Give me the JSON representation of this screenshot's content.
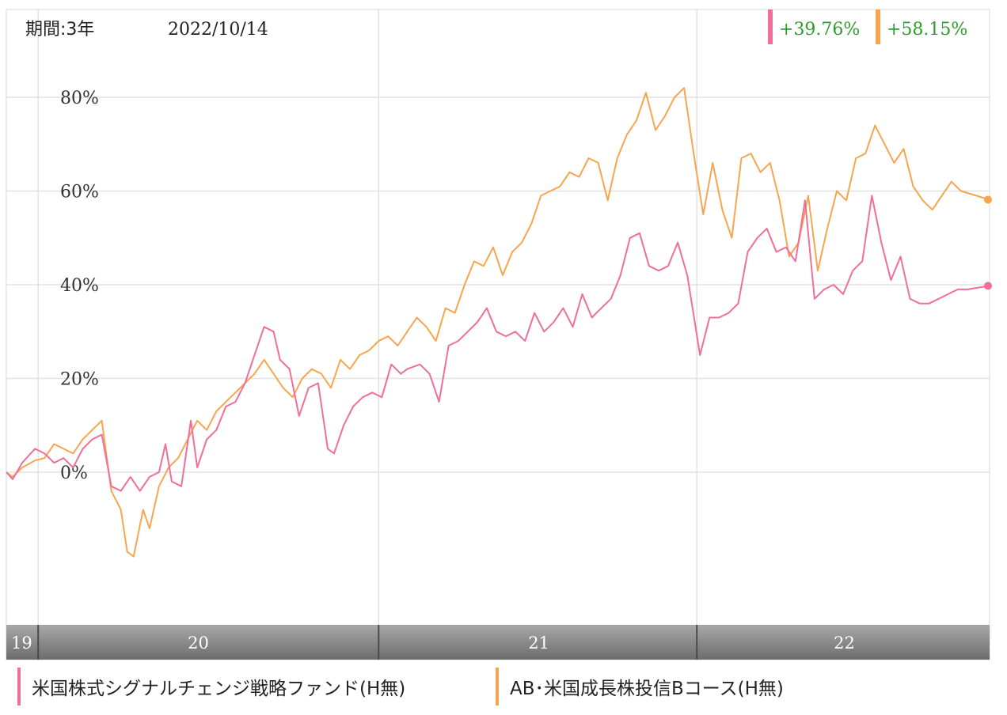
{
  "header": {
    "period_label": "期間:3年",
    "date_label": "2022/10/14"
  },
  "colors": {
    "series_pink": "#f06e9a",
    "series_orange": "#f7a54e",
    "return_text": "#2a9d2a",
    "axis_bar": "#8a8a8a",
    "grid": "#e2e2e2"
  },
  "chart_data": {
    "type": "line",
    "ylim": [
      -35,
      100
    ],
    "yticks": [
      0,
      20,
      40,
      60,
      80
    ],
    "ytick_labels": [
      "0%",
      "20%",
      "40%",
      "60%",
      "80%"
    ],
    "x_range": [
      2019.7,
      2022.79
    ],
    "year_boundaries": [
      2019.8,
      2020.87,
      2021.87,
      2022.79
    ],
    "year_labels": [
      {
        "label": "19",
        "x": 2019.7
      },
      {
        "label": "20",
        "x": 2020.3
      },
      {
        "label": "21",
        "x": 2021.37
      },
      {
        "label": "22",
        "x": 2022.33
      }
    ],
    "grid": true,
    "series": [
      {
        "name": "米国株式シグナルチェンジ戦略ファンド(H無)",
        "color": "#f06e9a",
        "final_return": "+39.76%",
        "points": [
          [
            2019.7,
            0
          ],
          [
            2019.72,
            -1.5
          ],
          [
            2019.75,
            2
          ],
          [
            2019.79,
            5
          ],
          [
            2019.82,
            4
          ],
          [
            2019.85,
            2
          ],
          [
            2019.88,
            3
          ],
          [
            2019.91,
            1
          ],
          [
            2019.94,
            5
          ],
          [
            2019.97,
            7
          ],
          [
            2020.0,
            8
          ],
          [
            2020.03,
            -3
          ],
          [
            2020.06,
            -4
          ],
          [
            2020.09,
            -1
          ],
          [
            2020.12,
            -4
          ],
          [
            2020.15,
            -1
          ],
          [
            2020.18,
            0
          ],
          [
            2020.2,
            6
          ],
          [
            2020.22,
            -2
          ],
          [
            2020.25,
            -3
          ],
          [
            2020.28,
            11
          ],
          [
            2020.3,
            1
          ],
          [
            2020.33,
            7
          ],
          [
            2020.36,
            9
          ],
          [
            2020.39,
            14
          ],
          [
            2020.42,
            15
          ],
          [
            2020.45,
            19
          ],
          [
            2020.48,
            25
          ],
          [
            2020.51,
            31
          ],
          [
            2020.54,
            30
          ],
          [
            2020.56,
            24
          ],
          [
            2020.59,
            22
          ],
          [
            2020.62,
            12
          ],
          [
            2020.65,
            18
          ],
          [
            2020.68,
            19
          ],
          [
            2020.71,
            5
          ],
          [
            2020.73,
            4
          ],
          [
            2020.76,
            10
          ],
          [
            2020.79,
            14
          ],
          [
            2020.82,
            16
          ],
          [
            2020.85,
            17
          ],
          [
            2020.88,
            16
          ],
          [
            2020.91,
            23
          ],
          [
            2020.94,
            21
          ],
          [
            2020.96,
            22
          ],
          [
            2021.0,
            23
          ],
          [
            2021.03,
            21
          ],
          [
            2021.06,
            15
          ],
          [
            2021.09,
            27
          ],
          [
            2021.12,
            28
          ],
          [
            2021.15,
            30
          ],
          [
            2021.18,
            32
          ],
          [
            2021.21,
            35
          ],
          [
            2021.24,
            30
          ],
          [
            2021.27,
            29
          ],
          [
            2021.3,
            30
          ],
          [
            2021.33,
            28
          ],
          [
            2021.36,
            34
          ],
          [
            2021.39,
            30
          ],
          [
            2021.42,
            32
          ],
          [
            2021.45,
            35
          ],
          [
            2021.48,
            31
          ],
          [
            2021.51,
            38
          ],
          [
            2021.54,
            33
          ],
          [
            2021.57,
            35
          ],
          [
            2021.6,
            37
          ],
          [
            2021.63,
            42
          ],
          [
            2021.66,
            50
          ],
          [
            2021.69,
            51
          ],
          [
            2021.72,
            44
          ],
          [
            2021.75,
            43
          ],
          [
            2021.78,
            44
          ],
          [
            2021.81,
            49
          ],
          [
            2021.84,
            42
          ],
          [
            2021.88,
            25
          ],
          [
            2021.91,
            33
          ],
          [
            2021.94,
            33
          ],
          [
            2021.97,
            34
          ],
          [
            2022.0,
            36
          ],
          [
            2022.03,
            47
          ],
          [
            2022.06,
            50
          ],
          [
            2022.09,
            52
          ],
          [
            2022.12,
            47
          ],
          [
            2022.15,
            48
          ],
          [
            2022.18,
            45
          ],
          [
            2022.21,
            58
          ],
          [
            2022.24,
            37
          ],
          [
            2022.27,
            39
          ],
          [
            2022.3,
            40
          ],
          [
            2022.33,
            38
          ],
          [
            2022.36,
            43
          ],
          [
            2022.39,
            45
          ],
          [
            2022.42,
            59
          ],
          [
            2022.45,
            49
          ],
          [
            2022.48,
            41
          ],
          [
            2022.51,
            46
          ],
          [
            2022.54,
            37
          ],
          [
            2022.57,
            36
          ],
          [
            2022.6,
            36
          ],
          [
            2022.63,
            37
          ],
          [
            2022.66,
            38
          ],
          [
            2022.69,
            39
          ],
          [
            2022.72,
            39
          ],
          [
            2022.79,
            39.76
          ]
        ]
      },
      {
        "name": "AB･米国成長株投信Bコース(H無)",
        "color": "#f7a54e",
        "final_return": "+58.15%",
        "points": [
          [
            2019.7,
            0
          ],
          [
            2019.72,
            -1
          ],
          [
            2019.75,
            1
          ],
          [
            2019.79,
            2.5
          ],
          [
            2019.82,
            3
          ],
          [
            2019.85,
            6
          ],
          [
            2019.88,
            5
          ],
          [
            2019.91,
            4
          ],
          [
            2019.94,
            7
          ],
          [
            2019.97,
            9
          ],
          [
            2020.0,
            11
          ],
          [
            2020.03,
            -4
          ],
          [
            2020.06,
            -8
          ],
          [
            2020.08,
            -17
          ],
          [
            2020.1,
            -18
          ],
          [
            2020.13,
            -8
          ],
          [
            2020.15,
            -12
          ],
          [
            2020.18,
            -3
          ],
          [
            2020.21,
            1
          ],
          [
            2020.24,
            3
          ],
          [
            2020.27,
            7
          ],
          [
            2020.3,
            11
          ],
          [
            2020.33,
            9
          ],
          [
            2020.36,
            13
          ],
          [
            2020.39,
            15
          ],
          [
            2020.42,
            17
          ],
          [
            2020.45,
            19
          ],
          [
            2020.48,
            21
          ],
          [
            2020.51,
            24
          ],
          [
            2020.54,
            21
          ],
          [
            2020.57,
            18
          ],
          [
            2020.6,
            16
          ],
          [
            2020.63,
            20
          ],
          [
            2020.66,
            22
          ],
          [
            2020.69,
            21
          ],
          [
            2020.72,
            18
          ],
          [
            2020.75,
            24
          ],
          [
            2020.78,
            22
          ],
          [
            2020.81,
            25
          ],
          [
            2020.84,
            26
          ],
          [
            2020.87,
            28
          ],
          [
            2020.9,
            29
          ],
          [
            2020.93,
            27
          ],
          [
            2020.96,
            30
          ],
          [
            2020.99,
            33
          ],
          [
            2021.02,
            31
          ],
          [
            2021.05,
            28
          ],
          [
            2021.08,
            35
          ],
          [
            2021.11,
            34
          ],
          [
            2021.14,
            40
          ],
          [
            2021.17,
            45
          ],
          [
            2021.2,
            44
          ],
          [
            2021.23,
            48
          ],
          [
            2021.26,
            42
          ],
          [
            2021.29,
            47
          ],
          [
            2021.32,
            49
          ],
          [
            2021.35,
            53
          ],
          [
            2021.38,
            59
          ],
          [
            2021.41,
            60
          ],
          [
            2021.44,
            61
          ],
          [
            2021.47,
            64
          ],
          [
            2021.5,
            63
          ],
          [
            2021.53,
            67
          ],
          [
            2021.56,
            66
          ],
          [
            2021.59,
            58
          ],
          [
            2021.62,
            67
          ],
          [
            2021.65,
            72
          ],
          [
            2021.68,
            75
          ],
          [
            2021.71,
            81
          ],
          [
            2021.74,
            73
          ],
          [
            2021.77,
            76
          ],
          [
            2021.8,
            80
          ],
          [
            2021.83,
            82
          ],
          [
            2021.86,
            68
          ],
          [
            2021.89,
            55
          ],
          [
            2021.92,
            66
          ],
          [
            2021.95,
            56
          ],
          [
            2021.98,
            50
          ],
          [
            2022.01,
            67
          ],
          [
            2022.04,
            68
          ],
          [
            2022.07,
            64
          ],
          [
            2022.1,
            66
          ],
          [
            2022.13,
            58
          ],
          [
            2022.16,
            46
          ],
          [
            2022.19,
            49
          ],
          [
            2022.22,
            59
          ],
          [
            2022.25,
            43
          ],
          [
            2022.28,
            52
          ],
          [
            2022.31,
            60
          ],
          [
            2022.34,
            58
          ],
          [
            2022.37,
            67
          ],
          [
            2022.4,
            68
          ],
          [
            2022.43,
            74
          ],
          [
            2022.46,
            70
          ],
          [
            2022.49,
            66
          ],
          [
            2022.52,
            69
          ],
          [
            2022.55,
            61
          ],
          [
            2022.58,
            58
          ],
          [
            2022.61,
            56
          ],
          [
            2022.64,
            59
          ],
          [
            2022.67,
            62
          ],
          [
            2022.7,
            60
          ],
          [
            2022.79,
            58.15
          ]
        ]
      }
    ]
  }
}
